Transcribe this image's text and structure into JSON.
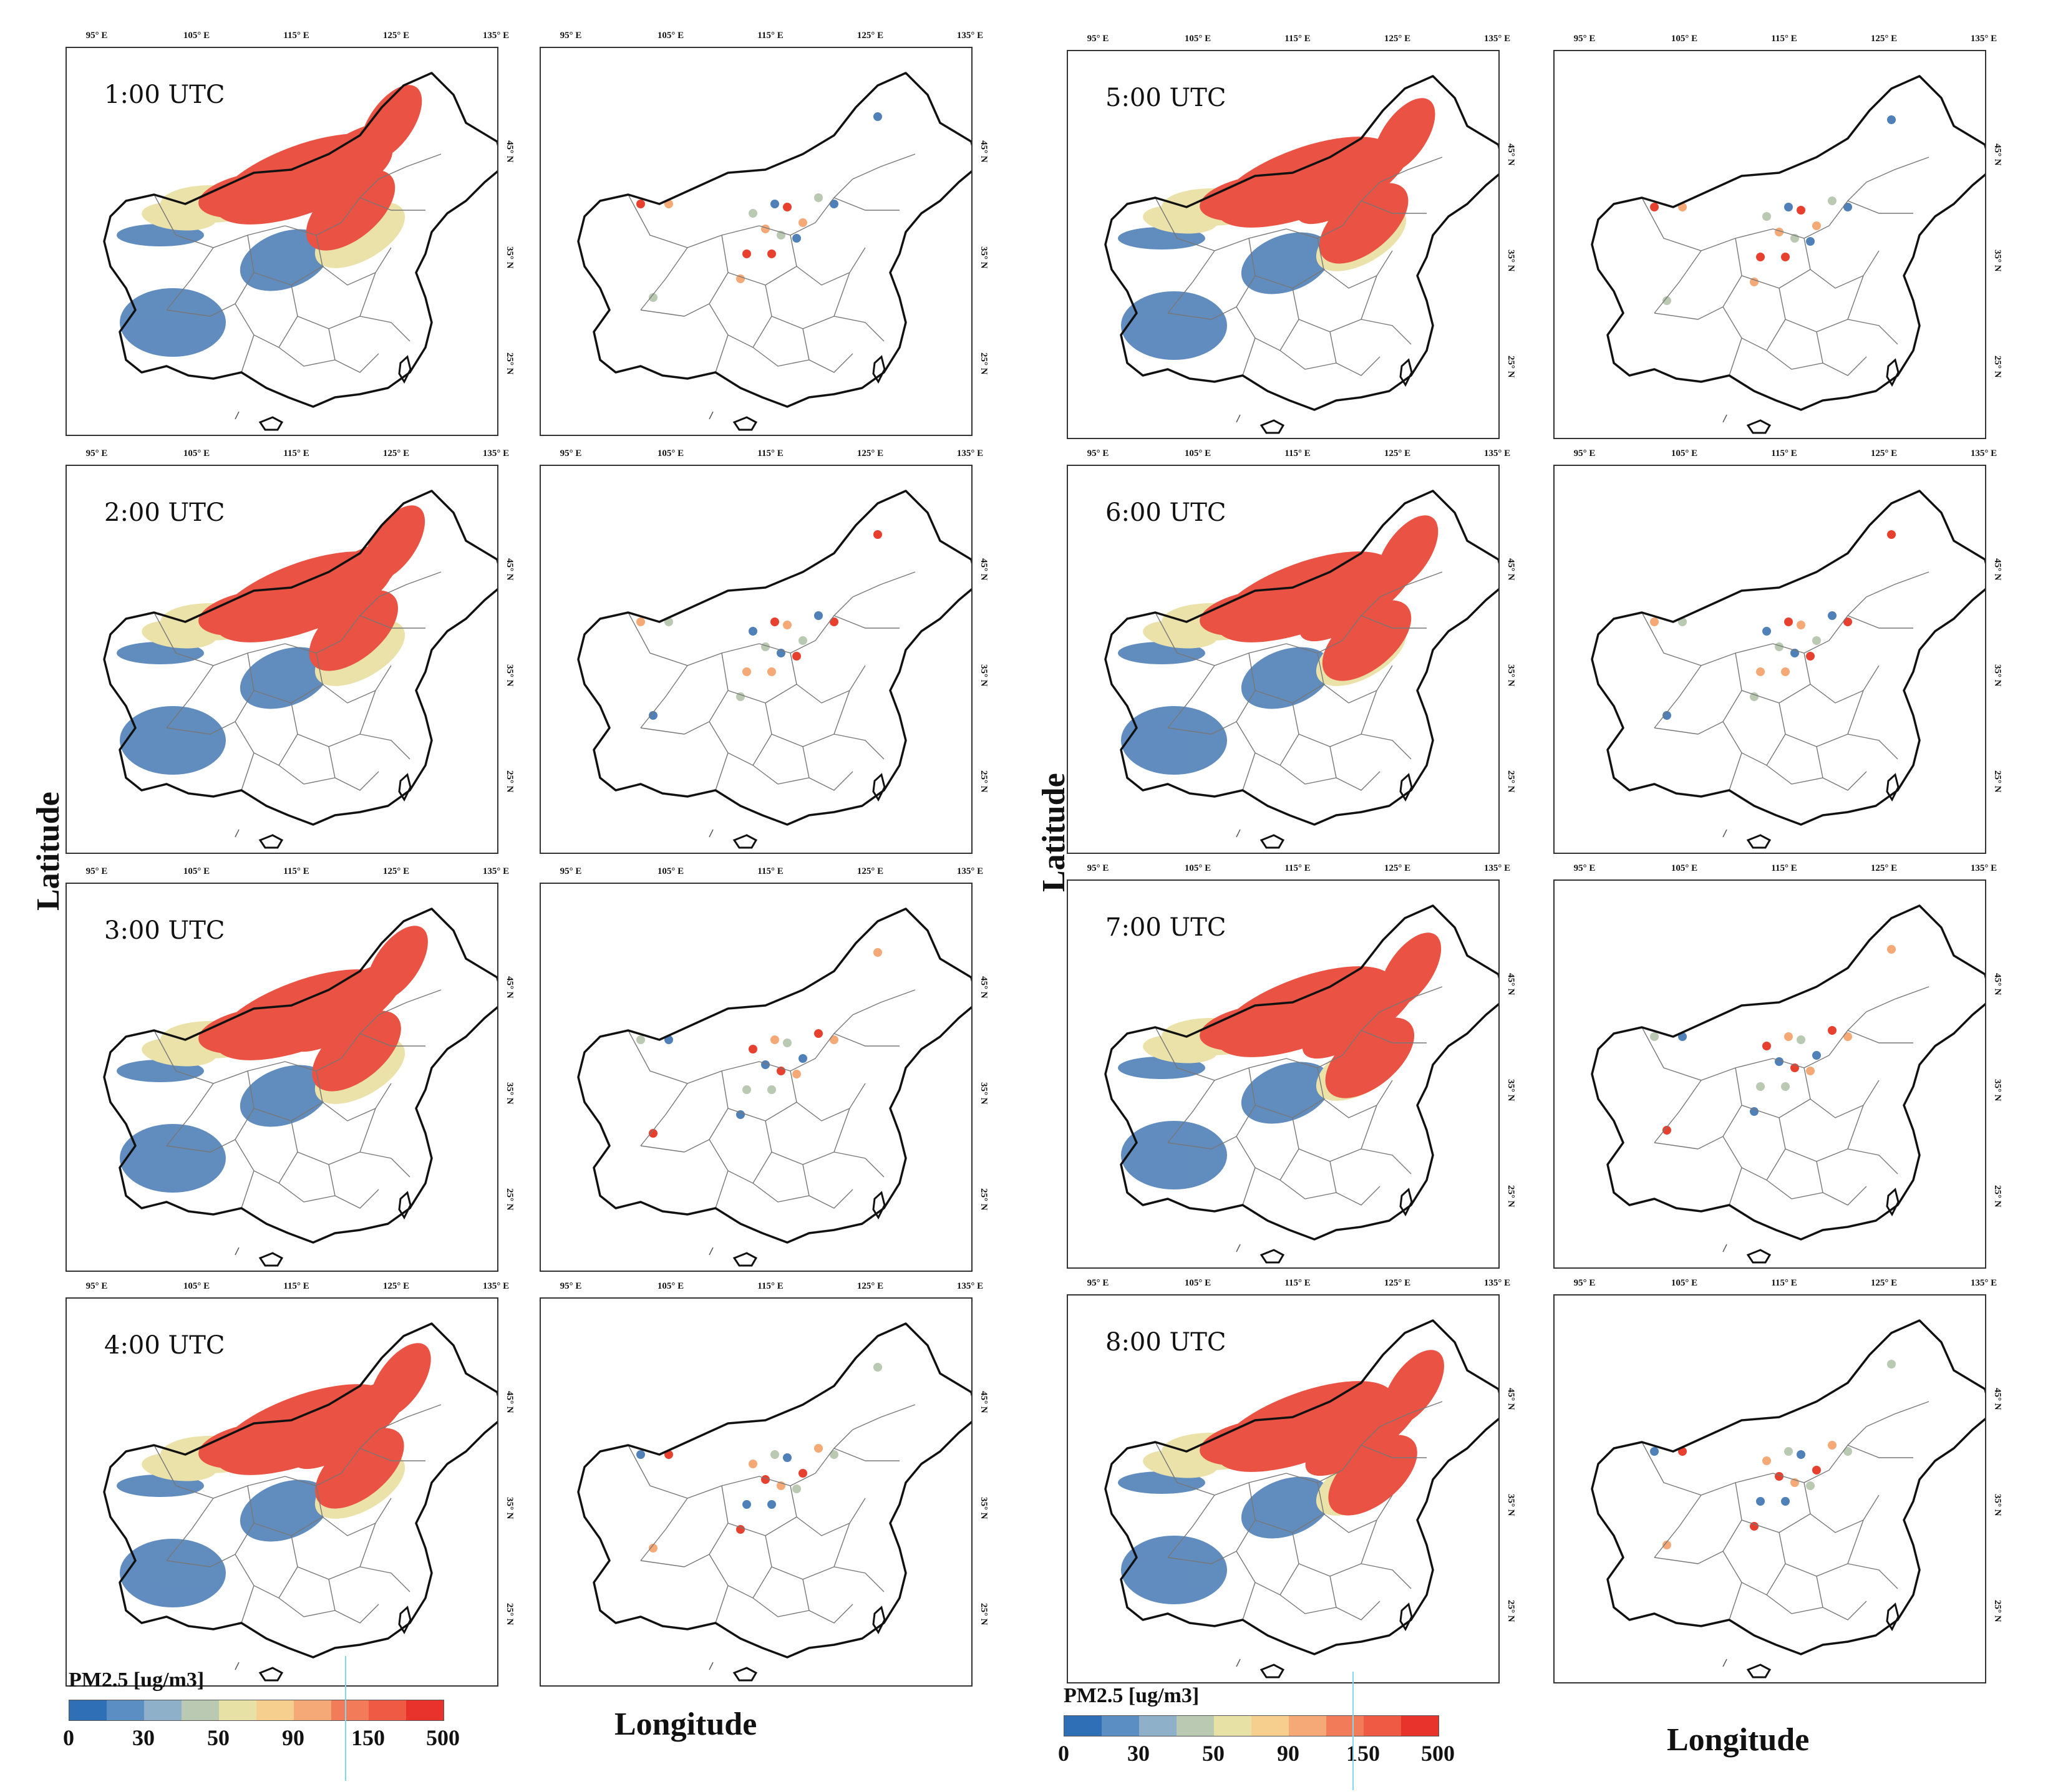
{
  "figure": {
    "y_axis_label": "Latitude",
    "x_axis_label": "Longitude",
    "lon_ticks": [
      "95° E",
      "105° E",
      "115° E",
      "125° E",
      "135° E"
    ],
    "lat_ticks": [
      "45° N",
      "35° N",
      "25° N"
    ],
    "time_labels": [
      "1:00 UTC",
      "2:00 UTC",
      "3:00 UTC",
      "4:00 UTC",
      "5:00 UTC",
      "6:00 UTC",
      "7:00 UTC",
      "8:00 UTC"
    ],
    "legend": {
      "title": "PM2.5 [ug/m3]",
      "ticks": [
        "0",
        "30",
        "50",
        "90",
        "150",
        "500"
      ],
      "colors": [
        "#2e6fb5",
        "#5b8ec2",
        "#8fb0c9",
        "#b9c9b2",
        "#e7e1a6",
        "#f6cf8f",
        "#f5a977",
        "#f27c5a",
        "#ee5a44",
        "#e8322c"
      ]
    },
    "colors": {
      "outline": "#111111",
      "province_lines": "#777777",
      "low": "#4f80b8",
      "mid": "#e9dfa0",
      "high": "#e8402f"
    }
  }
}
